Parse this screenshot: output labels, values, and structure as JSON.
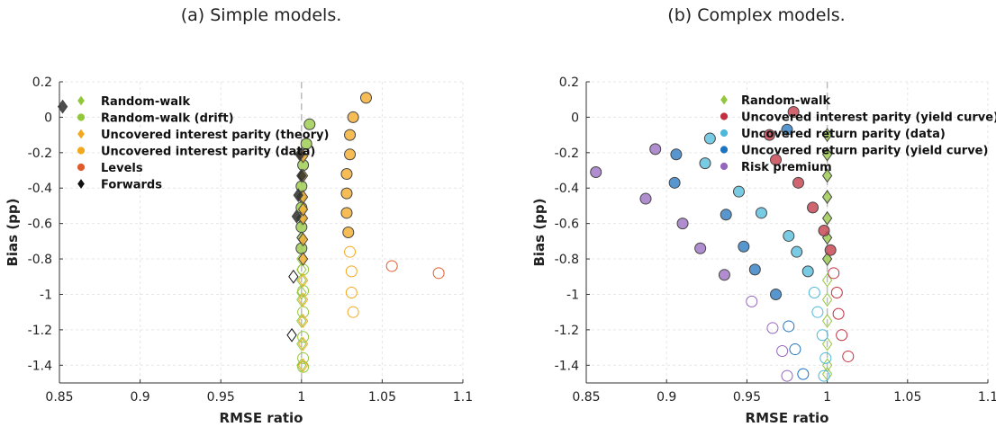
{
  "chart_data": [
    {
      "type": "scatter",
      "title": "(a) Simple models.",
      "xlabel": "RMSE ratio",
      "ylabel": "Bias (pp)",
      "xlim": [
        0.85,
        1.1
      ],
      "ylim": [
        -1.5,
        0.2
      ],
      "xticks": [
        "0.85",
        "0.9",
        "0.95",
        "1",
        "1.05",
        "1.1"
      ],
      "yticks": [
        "0.2",
        "0",
        "-0.2",
        "-0.4",
        "-0.6",
        "-0.8",
        "-1",
        "-1.2",
        "-1.4"
      ],
      "grid": true,
      "legend_placement": "top-left",
      "reference_line_x": 1,
      "series": [
        {
          "name": "Random-walk",
          "marker": "diamond",
          "color": "#93c73b",
          "x": [
            1.0,
            1.0,
            1.0,
            1.0,
            1.0,
            1.0,
            1.0,
            1.0,
            1.0,
            1.0,
            1.0,
            1.0,
            1.0
          ],
          "y": [
            -0.21,
            -0.33,
            -0.45,
            -0.57,
            -0.68,
            -0.8,
            -0.92,
            -1.03,
            -1.15,
            -1.28,
            -1.4,
            -0.99,
            -0.86
          ],
          "filled": [
            true,
            true,
            true,
            true,
            true,
            false,
            false,
            false,
            false,
            false,
            false,
            false,
            false
          ]
        },
        {
          "name": "Random-walk (drift)",
          "marker": "circle",
          "color": "#93c73b",
          "x": [
            1.005,
            1.003,
            1.001,
            1.0,
            1.0,
            1.0,
            1.0,
            1.001,
            1.001,
            1.001,
            1.001,
            1.001,
            1.001
          ],
          "y": [
            -0.04,
            -0.15,
            -0.27,
            -0.39,
            -0.51,
            -0.62,
            -0.74,
            -0.86,
            -0.98,
            -1.1,
            -1.24,
            -1.36,
            -1.41
          ],
          "filled": [
            true,
            true,
            true,
            true,
            true,
            true,
            true,
            false,
            false,
            false,
            false,
            false,
            false
          ]
        },
        {
          "name": "Uncovered interest parity (theory)",
          "marker": "diamond",
          "color": "#f2a81d",
          "x": [
            1.001,
            1.001,
            1.001,
            1.001,
            1.001,
            1.001,
            1.001,
            1.001,
            1.001,
            1.001,
            1.001,
            1.001
          ],
          "y": [
            -0.22,
            -0.33,
            -0.45,
            -0.57,
            -0.69,
            -0.8,
            -0.92,
            -1.03,
            -1.15,
            -1.28,
            -1.4,
            -0.52
          ],
          "filled": [
            true,
            true,
            true,
            true,
            true,
            true,
            false,
            false,
            false,
            false,
            false,
            true
          ]
        },
        {
          "name": "Uncovered interest parity (data)",
          "marker": "circle",
          "color": "#f2a81d",
          "x": [
            1.04,
            1.032,
            1.03,
            1.03,
            1.028,
            1.028,
            1.028,
            1.029,
            1.03,
            1.031,
            1.031,
            1.032
          ],
          "y": [
            0.11,
            0.0,
            -0.1,
            -0.21,
            -0.32,
            -0.43,
            -0.54,
            -0.65,
            -0.76,
            -0.87,
            -0.99,
            -1.1
          ],
          "filled": [
            true,
            true,
            true,
            true,
            true,
            true,
            true,
            true,
            false,
            false,
            false,
            false
          ]
        },
        {
          "name": "Levels",
          "marker": "circle",
          "color": "#e05a2b",
          "x": [
            1.056,
            1.085
          ],
          "y": [
            -0.84,
            -0.88
          ],
          "filled": [
            false,
            false
          ]
        },
        {
          "name": "Forwards",
          "marker": "diamond",
          "color": "#111111",
          "x": [
            0.852,
            0.999,
            1.0,
            0.998,
            0.997,
            0.995,
            0.994
          ],
          "y": [
            0.06,
            -0.21,
            -0.33,
            -0.44,
            -0.56,
            -0.9,
            -1.23
          ],
          "filled": [
            true,
            true,
            true,
            true,
            true,
            false,
            false
          ]
        }
      ]
    },
    {
      "type": "scatter",
      "title": "(b) Complex models.",
      "xlabel": "RMSE ratio",
      "ylabel": "Bias (pp)",
      "xlim": [
        0.85,
        1.1
      ],
      "ylim": [
        -1.5,
        0.2
      ],
      "xticks": [
        "0.85",
        "0.9",
        "0.95",
        "1",
        "1.05",
        "1.1"
      ],
      "yticks": [
        "0.2",
        "0",
        "-0.2",
        "-0.4",
        "-0.6",
        "-0.8",
        "-1",
        "-1.2",
        "-1.4"
      ],
      "grid": true,
      "legend_placement": "top-right",
      "reference_line_x": 1,
      "series": [
        {
          "name": "Random-walk",
          "marker": "diamond",
          "color": "#93c73b",
          "x": [
            1.0,
            1.0,
            1.0,
            1.0,
            1.0,
            1.0,
            1.0,
            1.0,
            1.0,
            1.0,
            1.0,
            1.0,
            1.0
          ],
          "y": [
            -0.1,
            -0.21,
            -0.33,
            -0.45,
            -0.57,
            -0.68,
            -0.8,
            -0.92,
            -1.03,
            -1.15,
            -1.28,
            -1.4,
            -1.45
          ],
          "filled": [
            true,
            true,
            true,
            true,
            true,
            true,
            true,
            false,
            false,
            false,
            false,
            false,
            false
          ]
        },
        {
          "name": "Uncovered interest parity (yield curve)",
          "marker": "circle",
          "color": "#c1303f",
          "x": [
            0.979,
            0.964,
            0.968,
            0.982,
            0.991,
            0.998,
            1.002,
            1.004,
            1.006,
            1.007,
            1.009,
            1.013
          ],
          "y": [
            0.03,
            -0.1,
            -0.24,
            -0.37,
            -0.51,
            -0.64,
            -0.75,
            -0.88,
            -0.99,
            -1.11,
            -1.23,
            -1.35
          ],
          "filled": [
            true,
            true,
            true,
            true,
            true,
            true,
            true,
            false,
            false,
            false,
            false,
            false
          ]
        },
        {
          "name": "Uncovered return parity (data)",
          "marker": "circle",
          "color": "#4db8d9",
          "x": [
            0.927,
            0.924,
            0.945,
            0.959,
            0.976,
            0.981,
            0.988,
            0.992,
            0.994,
            0.997,
            0.999,
            0.998
          ],
          "y": [
            -0.12,
            -0.26,
            -0.42,
            -0.54,
            -0.67,
            -0.76,
            -0.87,
            -0.99,
            -1.1,
            -1.23,
            -1.36,
            -1.46
          ],
          "filled": [
            true,
            true,
            true,
            true,
            true,
            true,
            true,
            false,
            false,
            false,
            false,
            false
          ]
        },
        {
          "name": "Uncovered return parity (yield curve)",
          "marker": "circle",
          "color": "#1e73be",
          "x": [
            0.975,
            0.906,
            0.905,
            0.937,
            0.948,
            0.955,
            0.968,
            0.976,
            0.98,
            0.985
          ],
          "y": [
            -0.07,
            -0.21,
            -0.37,
            -0.55,
            -0.73,
            -0.86,
            -1.0,
            -1.18,
            -1.31,
            -1.45
          ],
          "filled": [
            true,
            true,
            true,
            true,
            true,
            true,
            true,
            false,
            false,
            false
          ]
        },
        {
          "name": "Risk premium",
          "marker": "circle",
          "color": "#9467bd",
          "x": [
            0.893,
            0.856,
            0.887,
            0.91,
            0.921,
            0.936,
            0.953,
            0.966,
            0.972,
            0.975
          ],
          "y": [
            -0.18,
            -0.31,
            -0.46,
            -0.6,
            -0.74,
            -0.89,
            -1.04,
            -1.19,
            -1.32,
            -1.46
          ],
          "filled": [
            true,
            true,
            true,
            true,
            true,
            true,
            false,
            false,
            false,
            false
          ]
        }
      ]
    }
  ]
}
